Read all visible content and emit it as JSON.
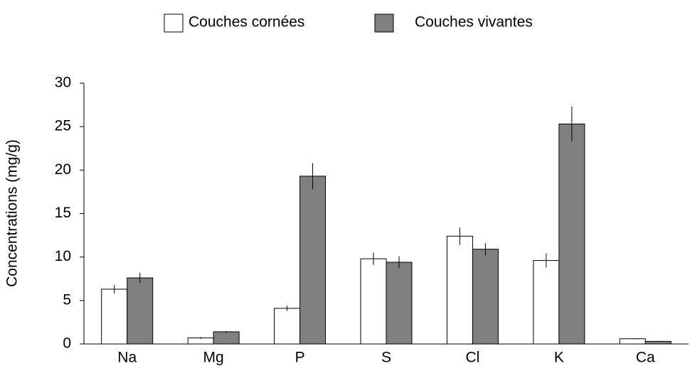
{
  "chart_data": {
    "type": "bar",
    "y_label": "Concentrations (mg/g)",
    "categories": [
      "Na",
      "Mg",
      "P",
      "S",
      "Cl",
      "K",
      "Ca"
    ],
    "series": [
      {
        "name": "Couches cornées",
        "color": "#ffffff",
        "values": [
          6.3,
          0.7,
          4.1,
          9.8,
          12.4,
          9.6,
          0.6
        ],
        "errors": [
          0.5,
          0.1,
          0.3,
          0.7,
          1.0,
          0.8,
          0.05
        ]
      },
      {
        "name": "Couches vivantes",
        "color": "#808080",
        "values": [
          7.6,
          1.4,
          19.3,
          9.4,
          10.9,
          25.3,
          0.3
        ],
        "errors": [
          0.6,
          0.1,
          1.5,
          0.7,
          0.7,
          2.0,
          0.05
        ]
      }
    ],
    "ylim": [
      0,
      30
    ],
    "yticks": [
      0,
      5,
      10,
      15,
      20,
      25,
      30
    ],
    "grid": false,
    "legend": "top"
  }
}
